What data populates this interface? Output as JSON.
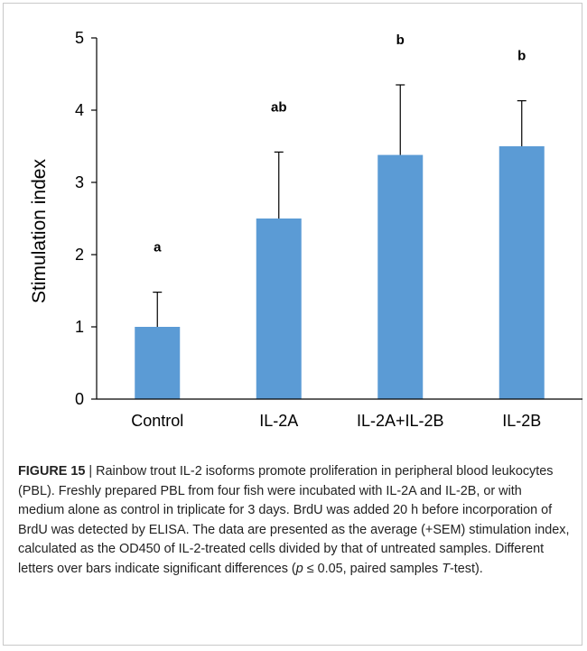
{
  "chart_data": {
    "type": "bar",
    "categories": [
      "Control",
      "IL-2A",
      "IL-2A+IL-2B",
      "IL-2B"
    ],
    "values": [
      1.0,
      2.5,
      3.38,
      3.5
    ],
    "error_upper": [
      1.48,
      3.42,
      4.35,
      4.13
    ],
    "significance_letters": [
      "a",
      "ab",
      "b",
      "b"
    ],
    "ylabel": "Stimulation index",
    "ylim": [
      0,
      5
    ],
    "yticks": [
      "0",
      "1",
      "2",
      "3",
      "4",
      "5"
    ],
    "bar_color": "#5b9bd5",
    "grid": false
  },
  "caption": {
    "figure_label": "FIGURE 15",
    "separator": " | ",
    "text_part1": "Rainbow trout IL-2 isoforms promote proliferation in peripheral blood leukocytes (PBL). Freshly prepared PBL from four fish were incubated with IL-2A and IL-2B, or with medium alone as control in triplicate for 3 days. BrdU was added 20 h before incorporation of BrdU was detected by ELISA. The data are presented as the average (+SEM) stimulation index, calculated as the OD450 of IL-2-treated cells divided by that of untreated samples. Different letters over bars indicate significant differences (",
    "p_symbol": "p",
    "text_part2": " ≤ 0.05, paired samples ",
    "t_symbol": "T",
    "text_part3": "-test)."
  }
}
